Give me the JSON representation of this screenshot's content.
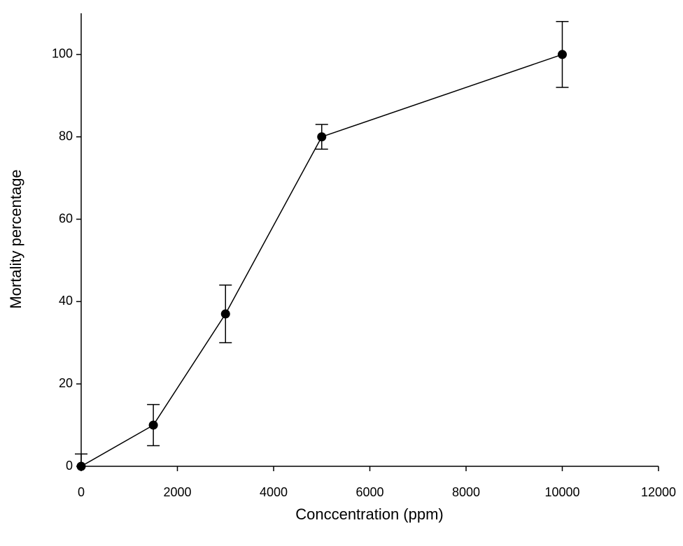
{
  "chart_data": {
    "type": "line",
    "x_label": "Conccentration (ppm)",
    "y_label": "Mortality percentage",
    "x": [
      0,
      1500,
      3000,
      5000,
      10000
    ],
    "series": [
      {
        "color": "#000000",
        "values": [
          0,
          10,
          37,
          80,
          100
        ],
        "errors": [
          3,
          5,
          7,
          3,
          8
        ]
      }
    ],
    "xlim": [
      0,
      12000
    ],
    "xticks": [
      0,
      2000,
      4000,
      6000,
      8000,
      10000,
      12000
    ],
    "ylim": [
      0,
      110
    ],
    "yticks": [
      0,
      20,
      40,
      60,
      80,
      100
    ],
    "grid": false
  }
}
